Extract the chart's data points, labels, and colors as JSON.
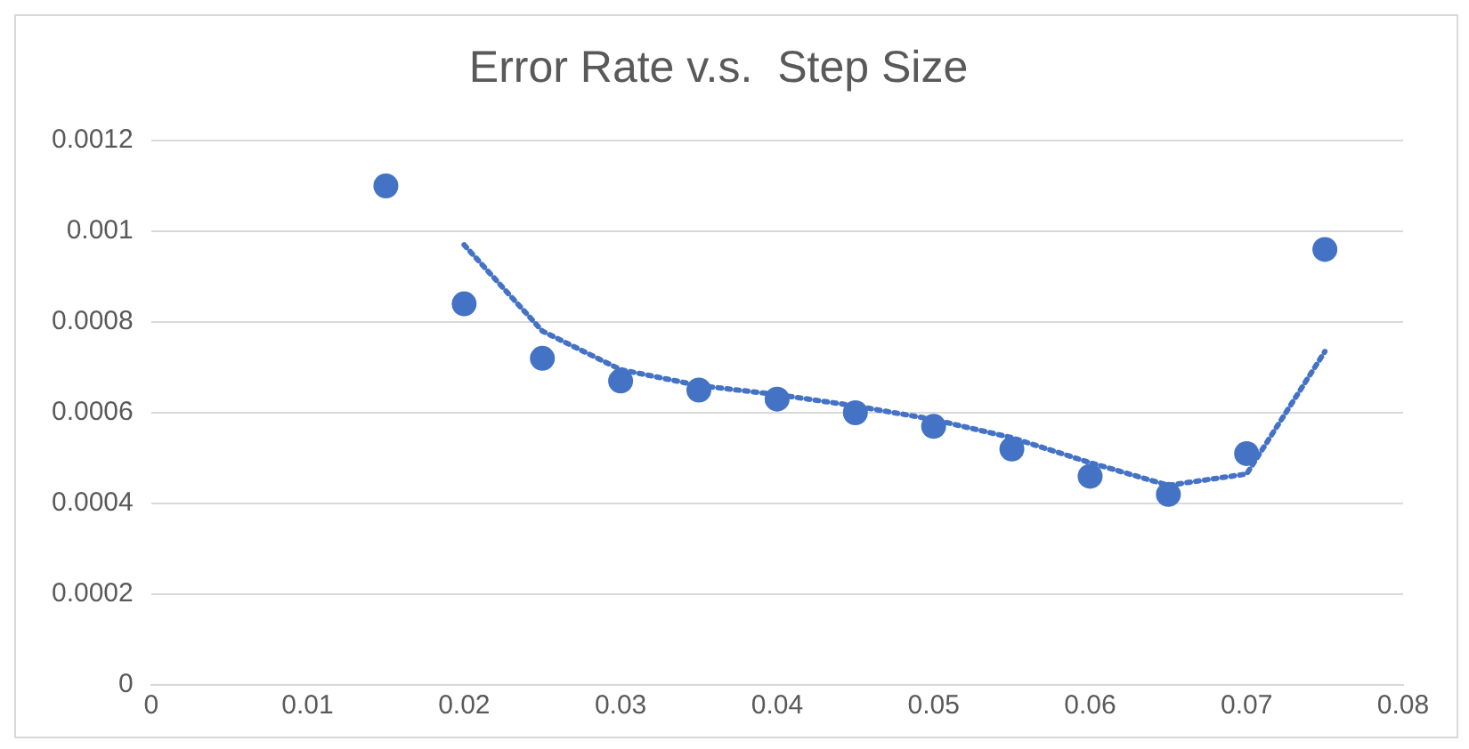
{
  "chart_data": {
    "type": "scatter",
    "title": "Error Rate v.s.  Step Size",
    "xlim": [
      0,
      0.08
    ],
    "xticks": [
      0,
      0.01,
      0.02,
      0.03,
      0.04,
      0.05,
      0.06,
      0.07,
      0.08
    ],
    "ylim": [
      0,
      0.0012
    ],
    "yticks": [
      0,
      0.0002,
      0.0004,
      0.0006,
      0.0008,
      0.001,
      0.0012
    ],
    "grid": "y",
    "legend": false,
    "series": [
      {
        "type": "scatter",
        "color": "#4472c4",
        "marker": "circle",
        "x": [
          0.015,
          0.02,
          0.025,
          0.03,
          0.035,
          0.04,
          0.045,
          0.05,
          0.055,
          0.06,
          0.065,
          0.07,
          0.075
        ],
        "values": [
          0.0011,
          0.00084,
          0.00072,
          0.00067,
          0.00065,
          0.00063,
          0.0006,
          0.00057,
          0.00052,
          0.00046,
          0.00042,
          0.00051,
          0.00096
        ]
      },
      {
        "type": "line",
        "color": "#4472c4",
        "marker": "none",
        "line_style": "dotted",
        "x": [
          0.02,
          0.025,
          0.03,
          0.035,
          0.04,
          0.045,
          0.05,
          0.055,
          0.06,
          0.065,
          0.07,
          0.075
        ],
        "values": [
          0.00097,
          0.00078,
          0.000695,
          0.00066,
          0.00064,
          0.000615,
          0.000585,
          0.000545,
          0.00049,
          0.00044,
          0.000465,
          0.000735
        ]
      }
    ]
  }
}
